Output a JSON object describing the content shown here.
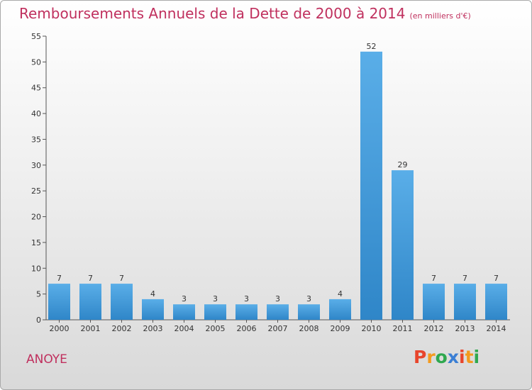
{
  "chart_data": {
    "type": "bar",
    "title": "Remboursements Annuels de la Dette de 2000 à 2014",
    "subtitle": "(en milliers d'€)",
    "categories": [
      "2000",
      "2001",
      "2002",
      "2003",
      "2004",
      "2005",
      "2006",
      "2007",
      "2008",
      "2009",
      "2010",
      "2011",
      "2012",
      "2013",
      "2014"
    ],
    "values": [
      7,
      7,
      7,
      4,
      3,
      3,
      3,
      3,
      3,
      4,
      52,
      29,
      7,
      7,
      7
    ],
    "ylim": [
      0,
      55
    ],
    "yticks": [
      0,
      5,
      10,
      15,
      20,
      25,
      30,
      35,
      40,
      45,
      50,
      55
    ],
    "grid": false,
    "colors": {
      "bar_light": "#5aaee8",
      "bar_dark": "#2f86c8",
      "title": "#c0305e"
    }
  },
  "footer": {
    "commune": "ANOYE"
  },
  "logo": {
    "text": "Proxiti"
  }
}
